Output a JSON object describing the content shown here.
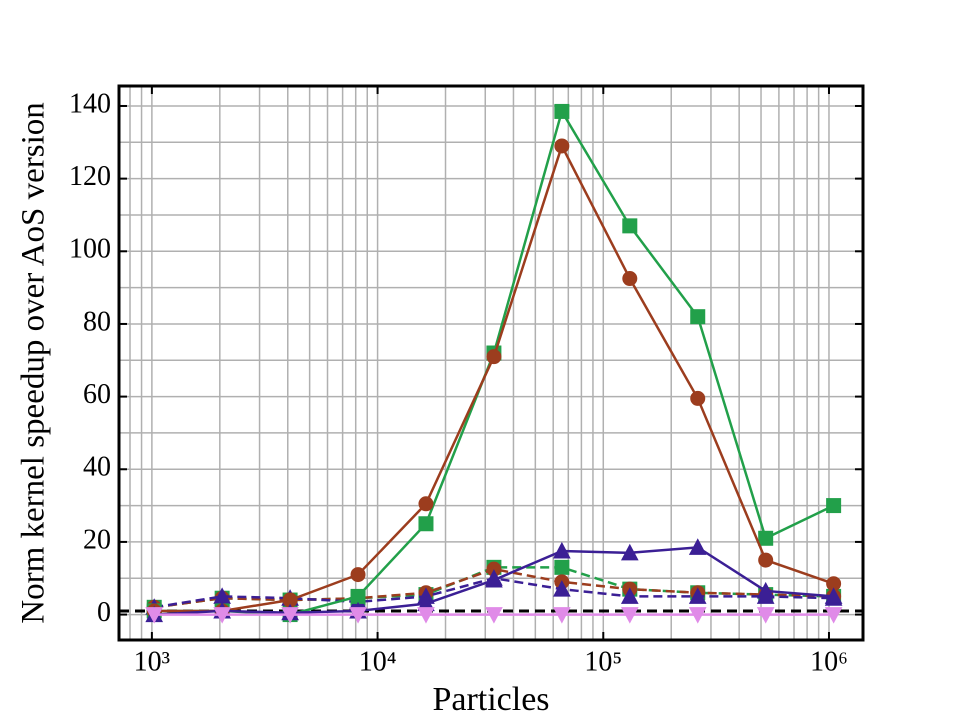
{
  "chart_data": {
    "type": "line",
    "xlabel": "Particles",
    "ylabel": "Norm kernel speedup over AoS version",
    "x": [
      1024,
      2048,
      4096,
      8192,
      16384,
      32768,
      65536,
      131072,
      262144,
      524288,
      1048576
    ],
    "xscale": "log",
    "xlim": [
      715,
      1415000
    ],
    "xticks": [
      {
        "value": 1000,
        "label": "10³"
      },
      {
        "value": 10000,
        "label": "10⁴"
      },
      {
        "value": 100000,
        "label": "10⁵"
      },
      {
        "value": 1000000,
        "label": "10⁶"
      }
    ],
    "ylim": [
      -7,
      145.5
    ],
    "yticks": [
      0,
      20,
      40,
      60,
      80,
      100,
      120,
      140
    ],
    "grid": true,
    "hline": 1,
    "series": [
      {
        "color": "#22a04a",
        "dash": true,
        "marker": "square",
        "values": [
          2,
          4.5,
          4,
          4.5,
          5.5,
          13,
          13,
          7,
          6,
          5.5,
          5
        ]
      },
      {
        "color": "#9c3d1e",
        "dash": true,
        "marker": "circle",
        "values": [
          2,
          4.5,
          4,
          4.5,
          6,
          12.5,
          9,
          7,
          6,
          5.5,
          5
        ]
      },
      {
        "color": "#3b1f95",
        "dash": true,
        "marker": "triangle-up",
        "values": [
          2,
          5,
          4.5,
          3.5,
          5,
          10,
          7,
          5,
          5,
          5,
          4.5
        ]
      },
      {
        "color": "#22a04a",
        "dash": false,
        "marker": "square",
        "values": [
          1,
          1,
          0,
          5,
          25,
          72,
          138.5,
          107,
          82,
          21,
          30
        ]
      },
      {
        "color": "#9c3d1e",
        "dash": false,
        "marker": "circle",
        "values": [
          1,
          1,
          4,
          11,
          30.5,
          71,
          129,
          92.5,
          59.5,
          15,
          8.5
        ]
      },
      {
        "color": "#3b1f95",
        "dash": false,
        "marker": "triangle-up",
        "values": [
          0,
          1,
          0.5,
          1,
          3,
          9.5,
          17.5,
          17,
          18.5,
          6.5,
          5
        ]
      },
      {
        "color": "#e08be8",
        "dash": false,
        "marker": "triangle-down",
        "values": [
          0,
          0,
          0,
          0,
          0,
          0,
          0,
          0,
          0,
          0,
          0
        ]
      }
    ]
  }
}
